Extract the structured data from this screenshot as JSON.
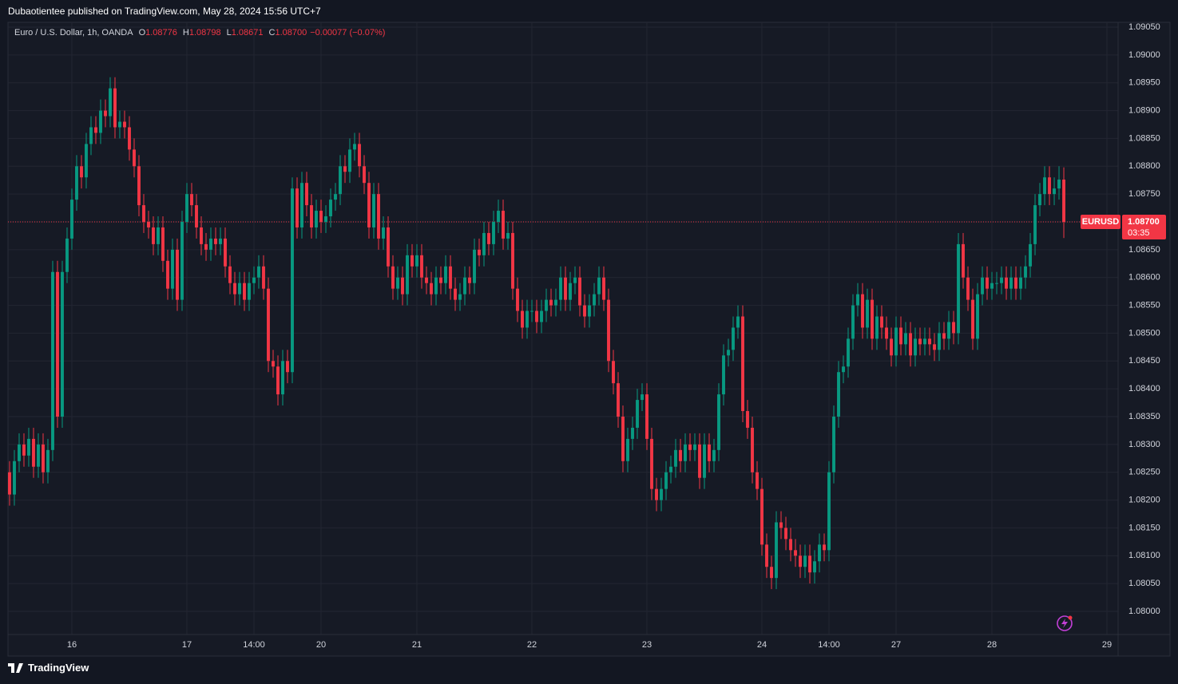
{
  "header": "Dubaotientee published on TradingView.com, May 28, 2024 15:56 UTC+7",
  "footer": "TradingView",
  "chart_data": {
    "type": "candlestick",
    "title": "Euro / U.S. Dollar, 1h, OANDA",
    "ohlc_legend": [
      {
        "key": "O",
        "text": "1.08776"
      },
      {
        "key": "H",
        "text": "1.08798"
      },
      {
        "key": "L",
        "text": "1.08671"
      },
      {
        "key": "C",
        "text": "1.08700"
      }
    ],
    "change": "−0.00077 (−0.07%)",
    "symbol": "EURUSD",
    "last_price": {
      "value": 1.087,
      "label": "1.08700"
    },
    "countdown": "03:35",
    "up_color": "#089981",
    "down_color": "#f23645",
    "grid": true,
    "xlim": [
      -0.33,
      231.33
    ],
    "xticks": [
      {
        "value": 13,
        "label": "16"
      },
      {
        "value": 37,
        "label": "17"
      },
      {
        "value": 51,
        "label": "14:00"
      },
      {
        "value": 65,
        "label": "20"
      },
      {
        "value": 85,
        "label": "21"
      },
      {
        "value": 109,
        "label": "22"
      },
      {
        "value": 133,
        "label": "23"
      },
      {
        "value": 157,
        "label": "24"
      },
      {
        "value": 171,
        "label": "14:00"
      },
      {
        "value": 185,
        "label": "27"
      },
      {
        "value": 205,
        "label": "28"
      },
      {
        "value": 229,
        "label": "29"
      }
    ],
    "ylim": [
      1.079584,
      1.090586
    ],
    "yticks": [
      {
        "value": 1.0905,
        "label": "1.09050"
      },
      {
        "value": 1.09,
        "label": "1.09000"
      },
      {
        "value": 1.0895,
        "label": "1.08950"
      },
      {
        "value": 1.089,
        "label": "1.08900"
      },
      {
        "value": 1.0885,
        "label": "1.08850"
      },
      {
        "value": 1.088,
        "label": "1.08800"
      },
      {
        "value": 1.0875,
        "label": "1.08750"
      },
      {
        "value": 1.087,
        "label": "1.08700"
      },
      {
        "value": 1.0865,
        "label": "1.08650"
      },
      {
        "value": 1.086,
        "label": "1.08600"
      },
      {
        "value": 1.0855,
        "label": "1.08550"
      },
      {
        "value": 1.085,
        "label": "1.08500"
      },
      {
        "value": 1.0845,
        "label": "1.08450"
      },
      {
        "value": 1.084,
        "label": "1.08400"
      },
      {
        "value": 1.0835,
        "label": "1.08350"
      },
      {
        "value": 1.083,
        "label": "1.08300"
      },
      {
        "value": 1.0825,
        "label": "1.08250"
      },
      {
        "value": 1.082,
        "label": "1.08200"
      },
      {
        "value": 1.0815,
        "label": "1.08150"
      },
      {
        "value": 1.081,
        "label": "1.08100"
      },
      {
        "value": 1.0805,
        "label": "1.08050"
      },
      {
        "value": 1.08,
        "label": "1.08000"
      }
    ],
    "open": [
      1.0825,
      1.0821,
      1.0827,
      1.083,
      1.0828,
      1.0831,
      1.0826,
      1.083,
      1.0825,
      1.0829,
      1.0861,
      1.0835,
      1.0861,
      1.0867,
      1.0874,
      1.088,
      1.0878,
      1.0884,
      1.0887,
      1.0886,
      1.089,
      1.0889,
      1.0894,
      1.0887,
      1.0888,
      1.0887,
      1.0883,
      1.088,
      1.0873,
      1.087,
      1.0869,
      1.0866,
      1.0869,
      1.0863,
      1.0858,
      1.0865,
      1.0856,
      1.087,
      1.0875,
      1.0873,
      1.0869,
      1.0866,
      1.0865,
      1.0867,
      1.0866,
      1.0867,
      1.0862,
      1.0859,
      1.0857,
      1.0859,
      1.0856,
      1.0859,
      1.086,
      1.0862,
      1.0858,
      1.0845,
      1.0844,
      1.0839,
      1.0845,
      1.0843,
      1.0876,
      1.0869,
      1.0877,
      1.0873,
      1.0869,
      1.0872,
      1.087,
      1.0871,
      1.0874,
      1.0875,
      1.088,
      1.0879,
      1.0883,
      1.0884,
      1.088,
      1.0877,
      1.0869,
      1.0875,
      1.0867,
      1.0869,
      1.0862,
      1.0858,
      1.086,
      1.0857,
      1.0864,
      1.0862,
      1.0864,
      1.086,
      1.0859,
      1.0857,
      1.086,
      1.0859,
      1.0862,
      1.0858,
      1.0856,
      1.0857,
      1.086,
      1.0859,
      1.0865,
      1.0864,
      1.0868,
      1.0866,
      1.087,
      1.0872,
      1.0867,
      1.0868,
      1.0858,
      1.0854,
      1.0851,
      1.0854,
      1.0854,
      1.0852,
      1.0854,
      1.0856,
      1.0855,
      1.0856,
      1.086,
      1.0856,
      1.0859,
      1.086,
      1.0855,
      1.0853,
      1.0855,
      1.0857,
      1.086,
      1.0856,
      1.0845,
      1.0841,
      1.0835,
      1.0827,
      1.0831,
      1.0833,
      1.0838,
      1.0839,
      1.0831,
      1.0822,
      1.082,
      1.0822,
      1.0825,
      1.0826,
      1.0829,
      1.0827,
      1.083,
      1.0829,
      1.083,
      1.0824,
      1.083,
      1.0827,
      1.0829,
      1.0839,
      1.0846,
      1.0847,
      1.0851,
      1.0853,
      1.0836,
      1.0833,
      1.0825,
      1.0822,
      1.0812,
      1.0808,
      1.0806,
      1.0816,
      1.0815,
      1.0813,
      1.0811,
      1.081,
      1.0808,
      1.081,
      1.0807,
      1.0809,
      1.0812,
      1.0811,
      1.0825,
      1.0835,
      1.0843,
      1.0844,
      1.0849,
      1.0855,
      1.0857,
      1.0851,
      1.0856,
      1.0849,
      1.0853,
      1.0851,
      1.0849,
      1.0846,
      1.0851,
      1.0848,
      1.085,
      1.0846,
      1.0849,
      1.0848,
      1.0849,
      1.0848,
      1.0847,
      1.085,
      1.0849,
      1.0852,
      1.085,
      1.0866,
      1.086,
      1.0856,
      1.0849,
      1.0857,
      1.086,
      1.0858,
      1.0859,
      1.0859,
      1.086,
      1.0858,
      1.086,
      1.0858,
      1.086,
      1.0862,
      1.0866,
      1.0873,
      1.0875,
      1.0878,
      1.0875,
      1.0876,
      1.08776
    ],
    "high": [
      1.0827,
      1.0829,
      1.0832,
      1.0832,
      1.0833,
      1.0833,
      1.0832,
      1.0832,
      1.0831,
      1.0863,
      1.0863,
      1.0863,
      1.0869,
      1.0876,
      1.0882,
      1.0882,
      1.0886,
      1.0889,
      1.0889,
      1.0892,
      1.0892,
      1.0896,
      1.0896,
      1.089,
      1.089,
      1.0889,
      1.0885,
      1.0882,
      1.0875,
      1.0872,
      1.0871,
      1.0871,
      1.0871,
      1.0865,
      1.0867,
      1.0867,
      1.0872,
      1.0877,
      1.0877,
      1.0875,
      1.0871,
      1.0868,
      1.0869,
      1.0869,
      1.0869,
      1.0869,
      1.0864,
      1.0861,
      1.0861,
      1.0861,
      1.0861,
      1.0862,
      1.0864,
      1.0864,
      1.086,
      1.0847,
      1.0846,
      1.0847,
      1.0847,
      1.0878,
      1.0878,
      1.0879,
      1.0879,
      1.0875,
      1.0874,
      1.0874,
      1.0873,
      1.0876,
      1.0877,
      1.0882,
      1.0882,
      1.0885,
      1.0886,
      1.0886,
      1.0882,
      1.0879,
      1.0877,
      1.0877,
      1.0871,
      1.0871,
      1.0864,
      1.0862,
      1.0862,
      1.0866,
      1.0866,
      1.0866,
      1.0866,
      1.0862,
      1.0861,
      1.0862,
      1.0862,
      1.0864,
      1.0864,
      1.086,
      1.0859,
      1.0862,
      1.0862,
      1.0867,
      1.0867,
      1.087,
      1.087,
      1.0872,
      1.0874,
      1.0874,
      1.087,
      1.087,
      1.086,
      1.0856,
      1.0856,
      1.0856,
      1.0856,
      1.0856,
      1.0858,
      1.0858,
      1.0858,
      1.0862,
      1.0862,
      1.0861,
      1.0862,
      1.0862,
      1.0857,
      1.0857,
      1.0859,
      1.0862,
      1.0862,
      1.0858,
      1.0847,
      1.0843,
      1.0837,
      1.0833,
      1.0835,
      1.084,
      1.0841,
      1.0841,
      1.0833,
      1.0824,
      1.0824,
      1.0827,
      1.0828,
      1.0831,
      1.0831,
      1.0832,
      1.0832,
      1.0832,
      1.0832,
      1.0832,
      1.0832,
      1.0831,
      1.0841,
      1.0848,
      1.0849,
      1.0853,
      1.0855,
      1.0855,
      1.0838,
      1.0835,
      1.0827,
      1.0824,
      1.0814,
      1.081,
      1.0818,
      1.0818,
      1.0817,
      1.0815,
      1.0813,
      1.0812,
      1.0812,
      1.0812,
      1.0811,
      1.0814,
      1.0814,
      1.0827,
      1.0837,
      1.0845,
      1.0846,
      1.0851,
      1.0857,
      1.0859,
      1.0859,
      1.0858,
      1.0858,
      1.0855,
      1.0855,
      1.0853,
      1.0851,
      1.0853,
      1.0853,
      1.0852,
      1.0852,
      1.0851,
      1.0851,
      1.0851,
      1.0851,
      1.085,
      1.0852,
      1.0852,
      1.0854,
      1.0854,
      1.0868,
      1.0868,
      1.0862,
      1.0858,
      1.0859,
      1.0862,
      1.0862,
      1.0861,
      1.0861,
      1.0862,
      1.0862,
      1.0862,
      1.0862,
      1.0862,
      1.0864,
      1.0868,
      1.0875,
      1.0877,
      1.088,
      1.088,
      1.0878,
      1.088,
      1.08798
    ],
    "low": [
      1.0819,
      1.0819,
      1.0825,
      1.0826,
      1.0826,
      1.0824,
      1.0824,
      1.0823,
      1.0823,
      1.0827,
      1.0833,
      1.0833,
      1.0859,
      1.0865,
      1.0872,
      1.0876,
      1.0876,
      1.0882,
      1.0884,
      1.0884,
      1.0887,
      1.0887,
      1.0885,
      1.0885,
      1.0885,
      1.0881,
      1.0878,
      1.0871,
      1.0868,
      1.0867,
      1.0864,
      1.0864,
      1.0861,
      1.0856,
      1.0856,
      1.0854,
      1.0854,
      1.0868,
      1.0871,
      1.0867,
      1.0864,
      1.0863,
      1.0863,
      1.0864,
      1.0864,
      1.086,
      1.0857,
      1.0855,
      1.0855,
      1.0854,
      1.0854,
      1.0857,
      1.0858,
      1.0856,
      1.0843,
      1.0842,
      1.0837,
      1.0837,
      1.0841,
      1.0841,
      1.0867,
      1.0867,
      1.0871,
      1.0867,
      1.0867,
      1.0868,
      1.0868,
      1.0869,
      1.0872,
      1.0873,
      1.0877,
      1.0877,
      1.0881,
      1.0878,
      1.0875,
      1.0867,
      1.0867,
      1.0865,
      1.0865,
      1.086,
      1.0856,
      1.0856,
      1.0855,
      1.0855,
      1.086,
      1.086,
      1.0858,
      1.0857,
      1.0855,
      1.0855,
      1.0857,
      1.0857,
      1.0856,
      1.0854,
      1.0854,
      1.0855,
      1.0857,
      1.0857,
      1.0862,
      1.0862,
      1.0864,
      1.0864,
      1.0868,
      1.0865,
      1.0865,
      1.0856,
      1.0852,
      1.0849,
      1.0849,
      1.0852,
      1.085,
      1.085,
      1.0852,
      1.0853,
      1.0853,
      1.0854,
      1.0854,
      1.0854,
      1.0857,
      1.0853,
      1.0851,
      1.0851,
      1.0853,
      1.0855,
      1.0854,
      1.0843,
      1.0839,
      1.0833,
      1.0825,
      1.0825,
      1.0829,
      1.0831,
      1.0836,
      1.0829,
      1.082,
      1.0818,
      1.0818,
      1.082,
      1.0823,
      1.0824,
      1.0825,
      1.0825,
      1.0827,
      1.0827,
      1.0822,
      1.0822,
      1.0825,
      1.0825,
      1.0827,
      1.0837,
      1.0844,
      1.0845,
      1.0849,
      1.0834,
      1.0831,
      1.0823,
      1.082,
      1.081,
      1.0806,
      1.0804,
      1.0804,
      1.0813,
      1.0811,
      1.0809,
      1.0808,
      1.0806,
      1.0806,
      1.0805,
      1.0805,
      1.0807,
      1.0809,
      1.0809,
      1.0823,
      1.0833,
      1.0841,
      1.0842,
      1.0847,
      1.0853,
      1.0849,
      1.0849,
      1.0847,
      1.0847,
      1.0849,
      1.0847,
      1.0844,
      1.0844,
      1.0846,
      1.0846,
      1.0844,
      1.0844,
      1.0846,
      1.0846,
      1.0846,
      1.0845,
      1.0845,
      1.0847,
      1.0847,
      1.0848,
      1.0848,
      1.0858,
      1.0854,
      1.0847,
      1.0847,
      1.0855,
      1.0856,
      1.0856,
      1.0857,
      1.0857,
      1.0856,
      1.0856,
      1.0856,
      1.0856,
      1.0858,
      1.086,
      1.0864,
      1.0871,
      1.0873,
      1.0873,
      1.0873,
      1.0874,
      1.08671
    ],
    "close": [
      1.0821,
      1.0827,
      1.083,
      1.0828,
      1.0831,
      1.0826,
      1.083,
      1.0825,
      1.0829,
      1.0861,
      1.0835,
      1.0861,
      1.0867,
      1.0874,
      1.088,
      1.0878,
      1.0884,
      1.0887,
      1.0886,
      1.089,
      1.0889,
      1.0894,
      1.0887,
      1.0888,
      1.0887,
      1.0883,
      1.088,
      1.0873,
      1.087,
      1.0869,
      1.0866,
      1.0869,
      1.0863,
      1.0858,
      1.0865,
      1.0856,
      1.087,
      1.0875,
      1.0873,
      1.0869,
      1.0866,
      1.0865,
      1.0867,
      1.0866,
      1.0867,
      1.0862,
      1.0859,
      1.0857,
      1.0859,
      1.0856,
      1.0859,
      1.086,
      1.0862,
      1.0858,
      1.0845,
      1.0844,
      1.0839,
      1.0845,
      1.0843,
      1.0876,
      1.0869,
      1.0877,
      1.0873,
      1.0869,
      1.0872,
      1.087,
      1.0871,
      1.0874,
      1.0875,
      1.088,
      1.0879,
      1.0883,
      1.0884,
      1.088,
      1.0877,
      1.0869,
      1.0875,
      1.0867,
      1.0869,
      1.0862,
      1.0858,
      1.086,
      1.0857,
      1.0864,
      1.0862,
      1.0864,
      1.086,
      1.0859,
      1.0857,
      1.086,
      1.0859,
      1.0862,
      1.0858,
      1.0856,
      1.0857,
      1.086,
      1.0859,
      1.0865,
      1.0864,
      1.0868,
      1.0866,
      1.087,
      1.0872,
      1.0867,
      1.0868,
      1.0858,
      1.0854,
      1.0851,
      1.0854,
      1.0854,
      1.0852,
      1.0854,
      1.0856,
      1.0855,
      1.0856,
      1.086,
      1.0856,
      1.0859,
      1.086,
      1.0855,
      1.0853,
      1.0855,
      1.0857,
      1.086,
      1.0856,
      1.0845,
      1.0841,
      1.0835,
      1.0827,
      1.0831,
      1.0833,
      1.0838,
      1.0839,
      1.0831,
      1.0822,
      1.082,
      1.0822,
      1.0825,
      1.0826,
      1.0829,
      1.0827,
      1.083,
      1.0829,
      1.083,
      1.0824,
      1.083,
      1.0827,
      1.0829,
      1.0839,
      1.0846,
      1.0847,
      1.0851,
      1.0853,
      1.0836,
      1.0833,
      1.0825,
      1.0822,
      1.0812,
      1.0808,
      1.0806,
      1.0816,
      1.0815,
      1.0813,
      1.0811,
      1.081,
      1.0808,
      1.081,
      1.0807,
      1.0809,
      1.0812,
      1.0811,
      1.0825,
      1.0835,
      1.0843,
      1.0844,
      1.0849,
      1.0855,
      1.0857,
      1.0851,
      1.0856,
      1.0849,
      1.0853,
      1.0851,
      1.0849,
      1.0846,
      1.0851,
      1.0848,
      1.085,
      1.0846,
      1.0849,
      1.0848,
      1.0849,
      1.0848,
      1.0847,
      1.085,
      1.0849,
      1.0852,
      1.085,
      1.0866,
      1.086,
      1.0856,
      1.0849,
      1.0857,
      1.086,
      1.0858,
      1.0859,
      1.0859,
      1.086,
      1.0858,
      1.086,
      1.0858,
      1.086,
      1.0862,
      1.0866,
      1.0873,
      1.0875,
      1.0878,
      1.0875,
      1.0876,
      1.08776,
      1.087
    ]
  }
}
